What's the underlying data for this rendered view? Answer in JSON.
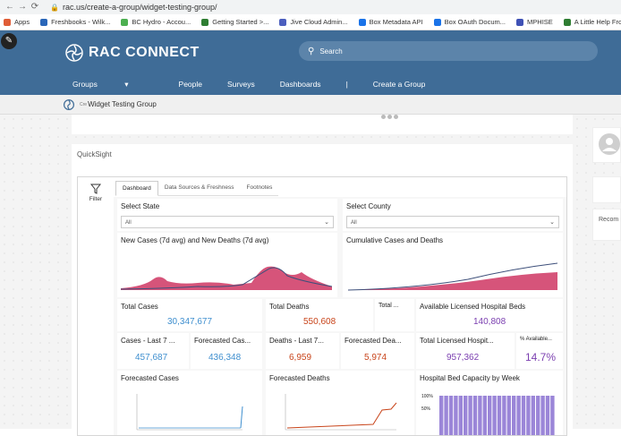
{
  "browser": {
    "url": "rac.us/create-a-group/widget-testing-group/",
    "bookmarks": [
      {
        "label": "Apps",
        "color": "#e05d36"
      },
      {
        "label": "Freshbooks - Wilk...",
        "color": "#2a66b8"
      },
      {
        "label": "BC Hydro - Accou...",
        "color": "#4caf50"
      },
      {
        "label": "Getting Started >...",
        "color": "#2e7d32"
      },
      {
        "label": "Jive Cloud Admin...",
        "color": "#4c5fbe"
      },
      {
        "label": "Box Metadata API",
        "color": "#1a73e8"
      },
      {
        "label": "Box OAuth Docum...",
        "color": "#1a73e8"
      },
      {
        "label": "MPHISE",
        "color": "#3f51b5"
      },
      {
        "label": "A Little Help From...",
        "color": "#2e7d32"
      }
    ]
  },
  "site": {
    "logo_text": "RAC CONNECT",
    "search_placeholder": "Search",
    "nav": [
      "Groups",
      "People",
      "Surveys",
      "Dashboards",
      "|",
      "Create a Group"
    ],
    "crumb_prefix": "Cre",
    "crumb_title": "Widget Testing Group"
  },
  "widget": {
    "title": "QuickSight",
    "filter_label": "Filter",
    "tabs": [
      "Dashboard",
      "Data Sources & Freshness",
      "Footnotes"
    ],
    "select_state": {
      "label": "Select State",
      "value": "All"
    },
    "select_county": {
      "label": "Select County",
      "value": "All"
    },
    "chart_left_title": "New Cases (7d avg) and New Deaths (7d avg)",
    "chart_right_title": "Cumulative Cases and Deaths",
    "kpi": {
      "total_cases_label": "Total Cases",
      "total_cases": "30,347,677",
      "total_deaths_label": "Total Deaths",
      "total_deaths": "550,608",
      "total_label": "Total ...",
      "beds_label": "Available Licensed Hospital Beds",
      "beds": "140,808",
      "cases7_label": "Cases - Last 7 ...",
      "cases7": "457,687",
      "fcases_label": "Forecasted Cas...",
      "fcases": "436,348",
      "deaths7_label": "Deaths - Last 7...",
      "deaths7": "6,959",
      "fdeaths_label": "Forecasted Dea...",
      "fdeaths": "5,974",
      "tbeds_label": "Total Licensed Hospit...",
      "tbeds": "957,362",
      "pavail_label": "% Available...",
      "pavail": "14.7%"
    },
    "bottom": [
      "Forecasted Cases",
      "Forecasted Deaths",
      "Hospital Bed Capacity by Week"
    ],
    "cap_ticks": [
      "100%",
      "50%"
    ],
    "colors": {
      "cases": "#3f8fcf",
      "deaths": "#c8441a",
      "beds": "#7b3fb0",
      "fill": "#d6547a"
    }
  },
  "side": {
    "recom_label": "Recom"
  }
}
